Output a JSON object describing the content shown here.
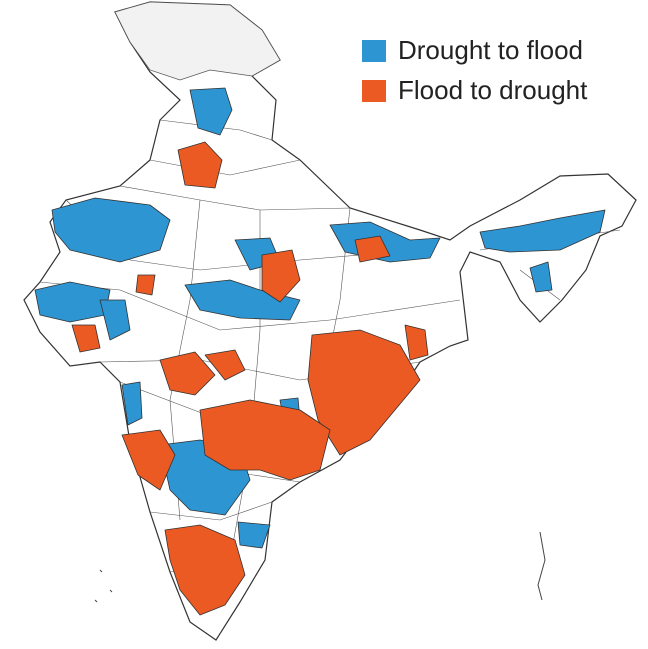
{
  "legend": {
    "items": [
      {
        "label": "Drought to flood",
        "color": "#2e95d3"
      },
      {
        "label": "Flood to drought",
        "color": "#eb5a23"
      }
    ]
  }
}
